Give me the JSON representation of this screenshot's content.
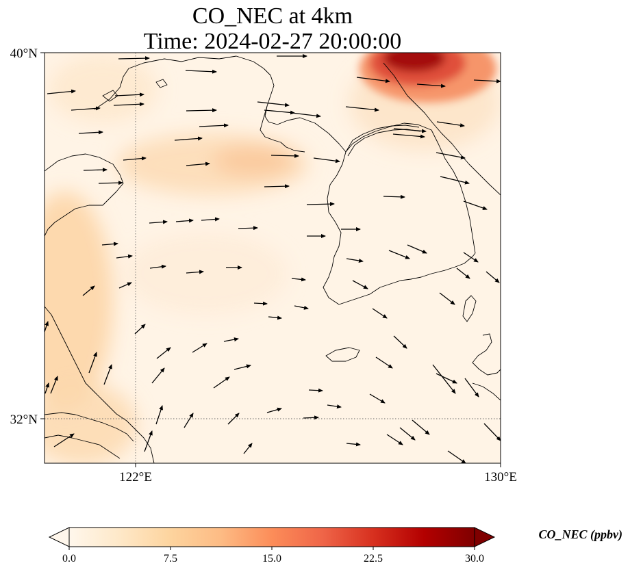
{
  "title": {
    "line1": "CO_NEC at 4km",
    "line2": "Time: 2024-02-27 20:00:00"
  },
  "map": {
    "lon_range": [
      120,
      130
    ],
    "lat_range": [
      31,
      40
    ],
    "lat_ticks": [
      {
        "value": 40,
        "label": "40°N"
      },
      {
        "value": 32,
        "label": "32°N"
      }
    ],
    "lon_ticks": [
      {
        "value": 122,
        "label": "122°E"
      },
      {
        "value": 130,
        "label": "130°E"
      }
    ],
    "gridlines": {
      "lat": [
        32
      ],
      "lon": [
        122
      ],
      "style": "dotted"
    },
    "coastlines": true,
    "wind_vectors": true
  },
  "colorbar": {
    "label": "CO_NEC (ppbv)",
    "colormap": "OrRd",
    "min": 0,
    "max": 30,
    "extend": "both",
    "ticks": [
      "0.0",
      "7.5",
      "15.0",
      "22.5",
      "30.0"
    ],
    "colors": [
      "#fff7ec",
      "#fee8c8",
      "#fdd49e",
      "#fdbb84",
      "#fc8d59",
      "#ef6548",
      "#d7301f",
      "#b30000",
      "#7f0000"
    ]
  }
}
